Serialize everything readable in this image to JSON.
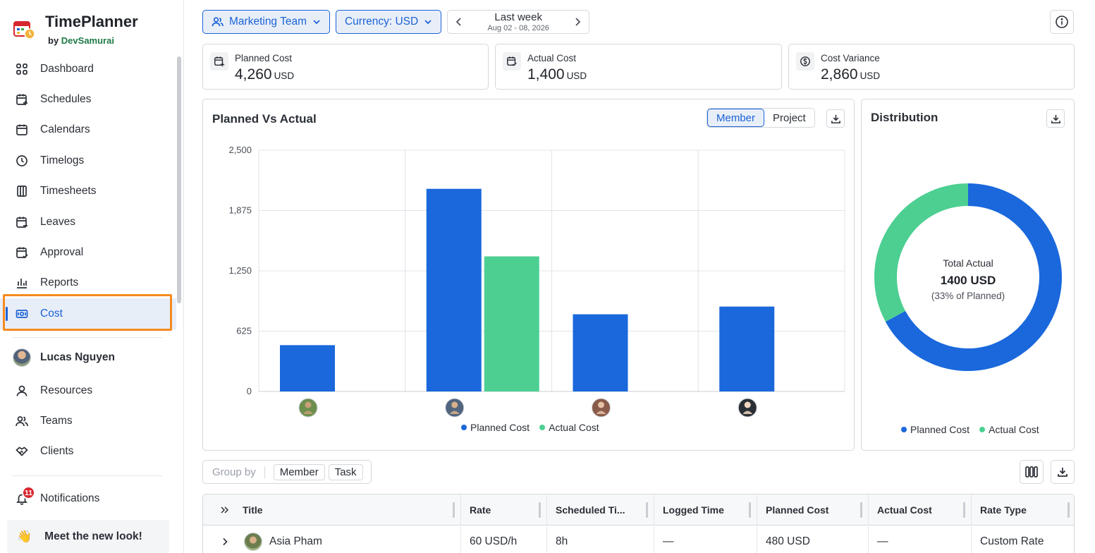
{
  "brand": {
    "title": "TimePlanner",
    "by": "by",
    "company": "DevSamurai"
  },
  "nav": [
    {
      "label": "Dashboard",
      "icon": "grid-icon"
    },
    {
      "label": "Schedules",
      "icon": "calendar-plus-icon"
    },
    {
      "label": "Calendars",
      "icon": "calendar-icon"
    },
    {
      "label": "Timelogs",
      "icon": "clock-icon"
    },
    {
      "label": "Timesheets",
      "icon": "columns-icon"
    },
    {
      "label": "Leaves",
      "icon": "calendar-minus-icon"
    },
    {
      "label": "Approval",
      "icon": "calendar-check-icon"
    },
    {
      "label": "Reports",
      "icon": "bar-chart-icon"
    },
    {
      "label": "Cost",
      "icon": "money-icon",
      "active": true
    }
  ],
  "user": {
    "name": "Lucas Nguyen"
  },
  "nav2": [
    {
      "label": "Resources",
      "icon": "user-icon"
    },
    {
      "label": "Teams",
      "icon": "users-icon"
    },
    {
      "label": "Clients",
      "icon": "handshake-icon"
    }
  ],
  "notifications": {
    "label": "Notifications",
    "count": "11"
  },
  "promo": {
    "emoji": "👋",
    "label": "Meet the new look!"
  },
  "filters": {
    "team": "Marketing Team",
    "currency": "Currency: USD",
    "period": "Last week",
    "range": "Aug 02 - 08, 2026"
  },
  "stats": [
    {
      "label": "Planned Cost",
      "value": "4,260",
      "unit": "USD"
    },
    {
      "label": "Actual Cost",
      "value": "1,400",
      "unit": "USD"
    },
    {
      "label": "Cost Variance",
      "value": "2,860",
      "unit": "USD"
    }
  ],
  "bar_panel": {
    "title": "Planned Vs Actual",
    "toggle": [
      "Member",
      "Project"
    ],
    "active_toggle": "Member"
  },
  "donut_panel": {
    "title": "Distribution",
    "center_label": "Total Actual",
    "center_value": "1400 USD",
    "center_note": "(33% of Planned)"
  },
  "colors": {
    "planned": "#1a68dc",
    "actual": "#4dcf92",
    "accent": "#1a62d6",
    "highlight": "#f58a1f"
  },
  "chart_data": [
    {
      "type": "bar",
      "categories": [
        "member-1",
        "member-2",
        "member-3",
        "member-4"
      ],
      "series": [
        {
          "name": "Planned Cost",
          "values": [
            480,
            2100,
            800,
            880
          ]
        },
        {
          "name": "Actual Cost",
          "values": [
            0,
            1400,
            0,
            0
          ]
        }
      ],
      "title": "Planned Vs Actual",
      "ylim": [
        0,
        2500
      ],
      "yticks": [
        "0",
        "625",
        "1,250",
        "1,875",
        "2,500"
      ],
      "ytick_values": [
        0,
        625,
        1250,
        1875,
        2500
      ],
      "grid": true,
      "legend": "bottom"
    },
    {
      "type": "pie",
      "title": "Distribution",
      "labels": [
        "Planned Cost",
        "Actual Cost"
      ],
      "values": [
        2860,
        1400
      ],
      "legend": "bottom"
    }
  ],
  "groupby": {
    "label": "Group by",
    "options": [
      "Member",
      "Task"
    ]
  },
  "table": {
    "columns": [
      "Title",
      "Rate",
      "Scheduled Ti...",
      "Logged Time",
      "Planned Cost",
      "Actual Cost",
      "Rate Type"
    ],
    "rows": [
      {
        "title": "Asia Pham",
        "rate": "60 USD/h",
        "scheduled": "8h",
        "logged": "—",
        "planned": "480 USD",
        "actual": "—",
        "rate_type": "Custom Rate"
      }
    ]
  }
}
